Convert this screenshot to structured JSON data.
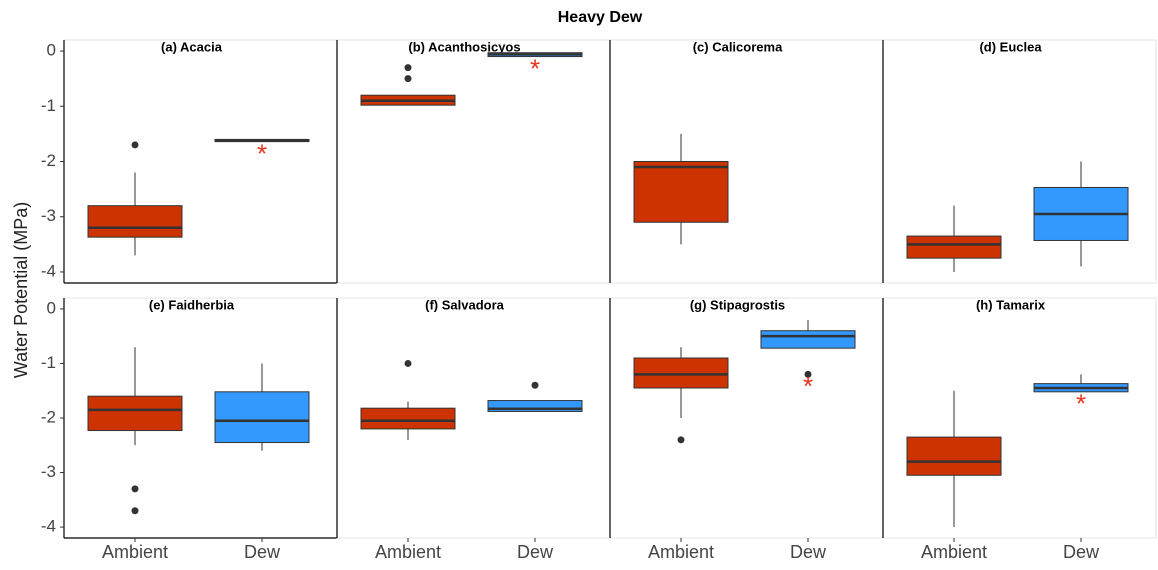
{
  "chart_data": {
    "type": "box",
    "title": "Heavy Dew",
    "y_label": "Water Potential (MPa)",
    "categories": [
      "Ambient",
      "Dew"
    ],
    "colors": [
      "#cc3300",
      "#3399ff"
    ],
    "ylim": [
      -4.2,
      0.2
    ],
    "yticks": [
      0,
      -1,
      -2,
      -3,
      -4
    ],
    "columns": 4,
    "panels": [
      {
        "title": "(a) Acacia",
        "boxes": [
          {
            "min": -3.7,
            "q1": -3.37,
            "median": -3.2,
            "q3": -2.8,
            "max": -2.2,
            "outliers": [
              -1.7
            ]
          },
          {
            "min": -1.64,
            "q1": -1.64,
            "median": -1.62,
            "q3": -1.6,
            "max": -1.6,
            "outliers": [],
            "significance": "*"
          }
        ]
      },
      {
        "title": "(b) Acanthosicyos",
        "boxes": [
          {
            "min": -0.98,
            "q1": -0.98,
            "median": -0.9,
            "q3": -0.8,
            "max": -0.8,
            "outliers": [
              -0.3,
              -0.5
            ]
          },
          {
            "min": -0.1,
            "q1": -0.1,
            "median": -0.06,
            "q3": -0.03,
            "max": -0.03,
            "outliers": [],
            "significance": "*"
          }
        ]
      },
      {
        "title": "(c) Calicorema",
        "boxes": [
          {
            "min": -3.5,
            "q1": -3.1,
            "median": -2.1,
            "q3": -2.0,
            "max": -1.5,
            "outliers": []
          },
          null
        ]
      },
      {
        "title": "(d) Euclea",
        "boxes": [
          {
            "min": -4.0,
            "q1": -3.75,
            "median": -3.5,
            "q3": -3.35,
            "max": -2.8,
            "outliers": []
          },
          {
            "min": -3.9,
            "q1": -3.43,
            "median": -2.95,
            "q3": -2.47,
            "max": -2.0,
            "outliers": []
          }
        ]
      },
      {
        "title": "(e) Faidherbia",
        "boxes": [
          {
            "min": -2.5,
            "q1": -2.23,
            "median": -1.85,
            "q3": -1.6,
            "max": -0.7,
            "outliers": [
              -3.3,
              -3.7
            ]
          },
          {
            "min": -2.6,
            "q1": -2.45,
            "median": -2.05,
            "q3": -1.52,
            "max": -1.0,
            "outliers": []
          }
        ]
      },
      {
        "title": "(f) Salvadora",
        "boxes": [
          {
            "min": -2.4,
            "q1": -2.2,
            "median": -2.05,
            "q3": -1.82,
            "max": -1.7,
            "outliers": [
              -1.0
            ]
          },
          {
            "min": -1.88,
            "q1": -1.88,
            "median": -1.83,
            "q3": -1.68,
            "max": -1.68,
            "outliers": [
              -1.4
            ]
          }
        ]
      },
      {
        "title": "(g) Stipagrostis",
        "boxes": [
          {
            "min": -2.0,
            "q1": -1.45,
            "median": -1.2,
            "q3": -0.9,
            "max": -0.7,
            "outliers": [
              -2.4
            ]
          },
          {
            "min": -0.72,
            "q1": -0.72,
            "median": -0.5,
            "q3": -0.4,
            "max": -0.2,
            "outliers": [
              -1.2
            ],
            "significance": "*"
          }
        ]
      },
      {
        "title": "(h) Tamarix",
        "boxes": [
          {
            "min": -4.0,
            "q1": -3.05,
            "median": -2.8,
            "q3": -2.35,
            "max": -1.5,
            "outliers": []
          },
          {
            "min": -1.52,
            "q1": -1.52,
            "median": -1.45,
            "q3": -1.37,
            "max": -1.2,
            "outliers": [],
            "significance": "*"
          }
        ]
      }
    ]
  }
}
